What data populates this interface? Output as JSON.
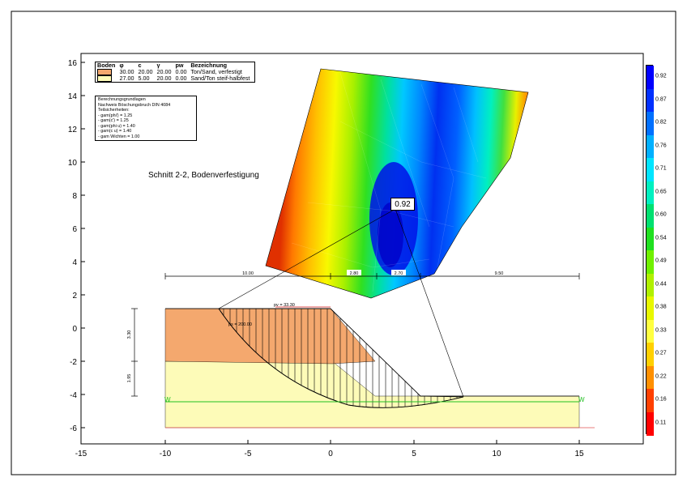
{
  "section_title": "Schnitt 2-2, Bodenverfestigung",
  "max_factor_label": "0.92",
  "soil_legend": {
    "headers": [
      "Boden",
      "φ",
      "c",
      "γ",
      "pw",
      "Bezeichnung"
    ],
    "rows": [
      {
        "phi": "30.00",
        "c": "20.00",
        "gamma": "20.00",
        "pw": "0.00",
        "name": "Ton/Sand, verfestigt",
        "color": "#f4a86e"
      },
      {
        "phi": "27.00",
        "c": "5.00",
        "gamma": "20.00",
        "pw": "0.00",
        "name": "Sand/Ton steif-halbfest",
        "color": "#fdfbb8"
      }
    ]
  },
  "basis": {
    "title": "Berechnungsgrundlagen",
    "standard": "Nachweis Böschungsbruch DIN 4084",
    "factors_title": "Teilsicherheiten:",
    "factors": [
      "- gam(phi') = 1.25",
      "- gam(c') = 1.25",
      "- gam(phi u) = 1.40",
      "- gam(c u) = 1.40",
      "- gam Wichten = 1.00"
    ]
  },
  "axes": {
    "x_ticks": [
      "-15",
      "-10",
      "-5",
      "0",
      "5",
      "10",
      "15"
    ],
    "y_ticks": [
      "16",
      "14",
      "12",
      "10",
      "8",
      "6",
      "4",
      "2",
      "0",
      "-2",
      "-4",
      "-6"
    ],
    "x_range": [
      -15,
      19
    ],
    "y_range": [
      -7,
      16
    ]
  },
  "dimensions": {
    "horizontal": [
      "10.00",
      "2.80",
      "2.70",
      "9.50"
    ],
    "vertical": [
      "3.30",
      "1.95"
    ]
  },
  "loads": {
    "pv": "pv = 33.30",
    "ps": "ps = 200.00"
  },
  "water_marker": "W",
  "color_scale": {
    "labels": [
      "0.92",
      "0.87",
      "0.82",
      "0.76",
      "0.71",
      "0.65",
      "0.60",
      "0.54",
      "0.49",
      "0.44",
      "0.38",
      "0.33",
      "0.27",
      "0.22",
      "0.16",
      "0.11"
    ],
    "colors": [
      "#0000ff",
      "#0030ff",
      "#0070ff",
      "#00b0ff",
      "#00e5ff",
      "#00f0c0",
      "#00e070",
      "#20e020",
      "#70f000",
      "#b0f000",
      "#e8f800",
      "#ffff40",
      "#ffd000",
      "#ff9000",
      "#ff4000",
      "#ff0000"
    ]
  }
}
